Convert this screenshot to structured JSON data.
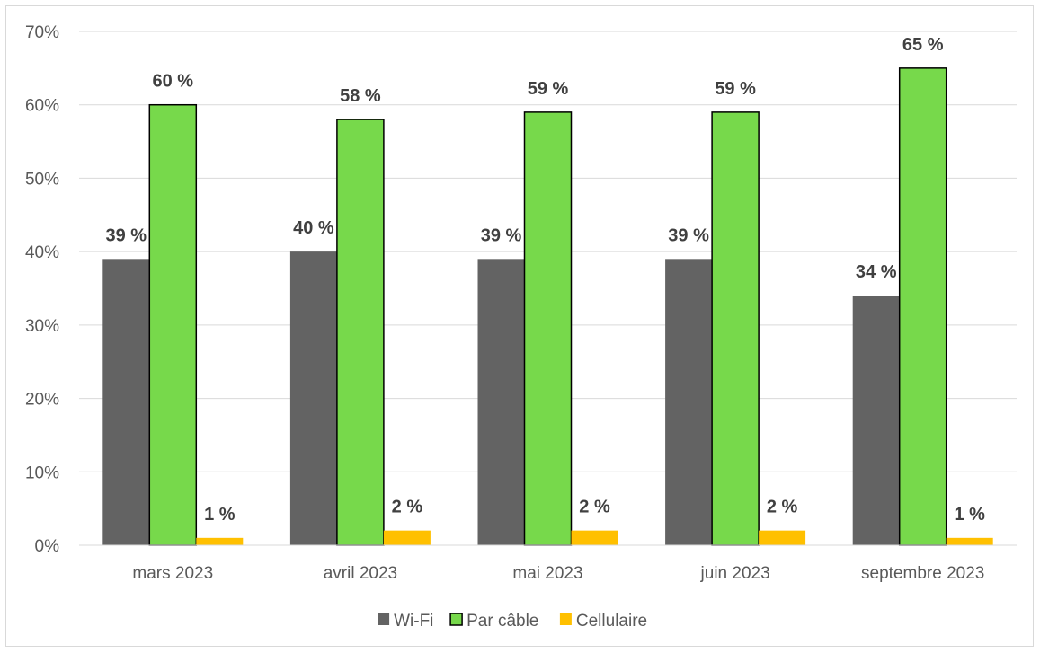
{
  "chart_data": {
    "type": "bar",
    "categories": [
      "mars 2023",
      "avril 2023",
      "mai 2023",
      "juin 2023",
      "septembre 2023"
    ],
    "series": [
      {
        "name": "Wi-Fi",
        "color": "#636363",
        "values": [
          39,
          40,
          39,
          39,
          34
        ],
        "labels": [
          "39 %",
          "40 %",
          "39 %",
          "39 %",
          "34 %"
        ]
      },
      {
        "name": "Par câble",
        "color": "#77d94b",
        "values": [
          60,
          58,
          59,
          59,
          65
        ],
        "labels": [
          "60 %",
          "58 %",
          "59 %",
          "59 %",
          "65 %"
        ]
      },
      {
        "name": "Cellulaire",
        "color": "#ffc000",
        "values": [
          1,
          2,
          2,
          2,
          1
        ],
        "labels": [
          "1 %",
          "2 %",
          "2 %",
          "2 %",
          "1 %"
        ]
      }
    ],
    "yticks": [
      "0%",
      "10%",
      "20%",
      "30%",
      "40%",
      "50%",
      "60%",
      "70%"
    ],
    "ylim": [
      0,
      70
    ],
    "grid": true,
    "legend_position": "bottom",
    "title": "",
    "xlabel": "",
    "ylabel": ""
  }
}
